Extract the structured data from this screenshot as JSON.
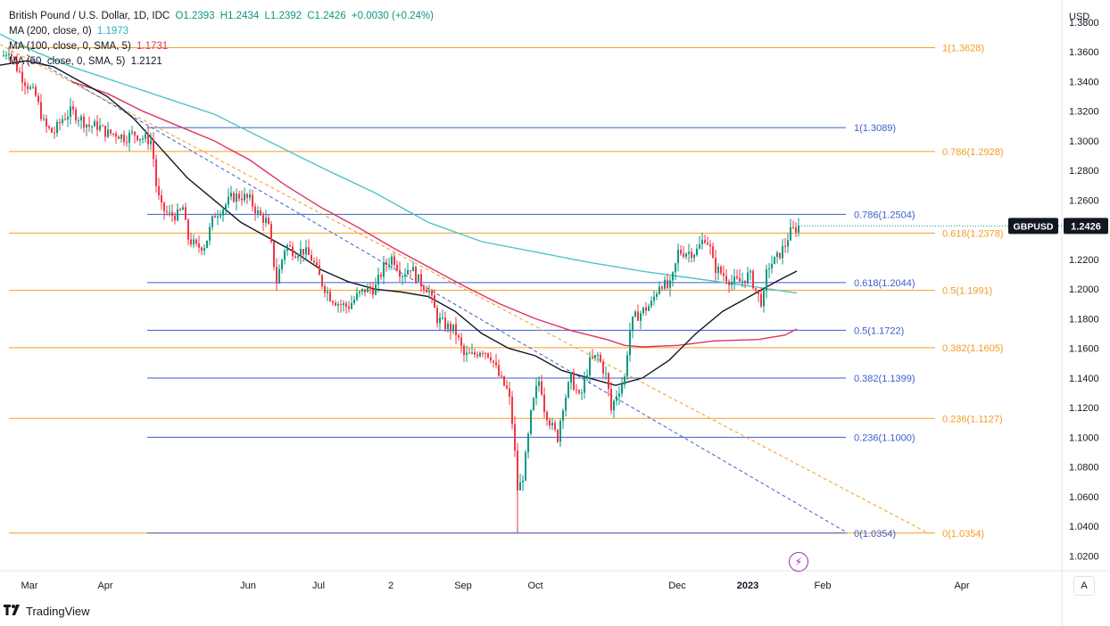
{
  "legend": {
    "symbol": "British Pound / U.S. Dollar, 1D, IDC",
    "open": "O1.2393",
    "high": "H1.2434",
    "low": "L1.2392",
    "close": "C1.2426",
    "change": "+0.0030 (+0.24%)",
    "ma200_label": "MA (200, close, 0)",
    "ma200_value": "1.1973",
    "ma100_label": "MA (100, close, 0, SMA, 5)",
    "ma100_value": "1.1731",
    "ma50_label": "MA (50, close, 0, SMA, 5)",
    "ma50_value": "1.2121"
  },
  "colors": {
    "up": "#089981",
    "down": "#f23645",
    "ma200": "#4fc3c8",
    "ma100": "#e0315f",
    "ma50": "#131722",
    "fib_orange": "#f59b23",
    "fib_blue": "#3b5fc9",
    "price_tag": "#131722"
  },
  "brand": "TradingView",
  "auto_label": "A",
  "chart_data": {
    "type": "candlestick",
    "title": "British Pound / U.S. Dollar, 1D, IDC",
    "currency": "USD",
    "ylim": [
      1.01,
      1.395
    ],
    "y_ticks": [
      "1.3800",
      "1.3600",
      "1.3400",
      "1.3200",
      "1.3000",
      "1.2800",
      "1.2600",
      "1.2400",
      "1.2200",
      "1.2000",
      "1.1800",
      "1.1600",
      "1.1400",
      "1.1200",
      "1.1000",
      "1.0800",
      "1.0600",
      "1.0400",
      "1.0200"
    ],
    "x_ticks": [
      "Mar",
      "Apr",
      "Jun",
      "Jul",
      "2",
      "Sep",
      "Oct",
      "Dec",
      "2023",
      "Feb",
      "Apr"
    ],
    "last_price": {
      "label": "GBPUSD",
      "value": "1.2426"
    },
    "fib_orange": [
      {
        "label": "1(1.3628)",
        "value": 1.3628
      },
      {
        "label": "0.786(1.2928)",
        "value": 1.2928
      },
      {
        "label": "0.618(1.2378)",
        "value": 1.2378
      },
      {
        "label": "0.5(1.1991)",
        "value": 1.1991
      },
      {
        "label": "0.382(1.1605)",
        "value": 1.1605
      },
      {
        "label": "0.236(1.1127)",
        "value": 1.1127
      },
      {
        "label": "0(1.0354)",
        "value": 1.0354
      }
    ],
    "fib_blue": [
      {
        "label": "1(1.3089)",
        "value": 1.3089
      },
      {
        "label": "0.786(1.2504)",
        "value": 1.2504
      },
      {
        "label": "0.618(1.2044)",
        "value": 1.2044
      },
      {
        "label": "0.5(1.1722)",
        "value": 1.1722
      },
      {
        "label": "0.382(1.1399)",
        "value": 1.1399
      },
      {
        "label": "0.236(1.1000)",
        "value": 1.1
      },
      {
        "label": "0(1.0354)",
        "value": 1.0354
      }
    ],
    "trend_orange": [
      [
        0,
        1.365
      ],
      [
        1040,
        1.0354
      ]
    ],
    "trend_blue": [
      [
        30,
        1.358
      ],
      [
        950,
        1.0354
      ]
    ],
    "close_path": [
      [
        0,
        1.355
      ],
      [
        10,
        1.362
      ],
      [
        18,
        1.35
      ],
      [
        28,
        1.34
      ],
      [
        40,
        1.33
      ],
      [
        50,
        1.31
      ],
      [
        60,
        1.305
      ],
      [
        70,
        1.315
      ],
      [
        80,
        1.32
      ],
      [
        90,
        1.315
      ],
      [
        100,
        1.31
      ],
      [
        110,
        1.31
      ],
      [
        120,
        1.305
      ],
      [
        130,
        1.305
      ],
      [
        140,
        1.302
      ],
      [
        150,
        1.305
      ],
      [
        160,
        1.302
      ],
      [
        170,
        1.3
      ],
      [
        175,
        1.27
      ],
      [
        180,
        1.255
      ],
      [
        190,
        1.25
      ],
      [
        200,
        1.25
      ],
      [
        205,
        1.255
      ],
      [
        210,
        1.235
      ],
      [
        220,
        1.228
      ],
      [
        230,
        1.23
      ],
      [
        240,
        1.25
      ],
      [
        250,
        1.255
      ],
      [
        260,
        1.262
      ],
      [
        270,
        1.263
      ],
      [
        280,
        1.26
      ],
      [
        290,
        1.25
      ],
      [
        300,
        1.245
      ],
      [
        305,
        1.225
      ],
      [
        310,
        1.205
      ],
      [
        320,
        1.23
      ],
      [
        330,
        1.225
      ],
      [
        340,
        1.226
      ],
      [
        350,
        1.22
      ],
      [
        360,
        1.205
      ],
      [
        370,
        1.195
      ],
      [
        380,
        1.19
      ],
      [
        390,
        1.188
      ],
      [
        400,
        1.195
      ],
      [
        410,
        1.2
      ],
      [
        420,
        1.2
      ],
      [
        430,
        1.215
      ],
      [
        440,
        1.222
      ],
      [
        450,
        1.21
      ],
      [
        460,
        1.215
      ],
      [
        470,
        1.205
      ],
      [
        480,
        1.2
      ],
      [
        490,
        1.18
      ],
      [
        500,
        1.175
      ],
      [
        510,
        1.172
      ],
      [
        520,
        1.155
      ],
      [
        530,
        1.155
      ],
      [
        540,
        1.16
      ],
      [
        550,
        1.155
      ],
      [
        560,
        1.14
      ],
      [
        570,
        1.13
      ],
      [
        575,
        1.105
      ],
      [
        580,
        1.065
      ],
      [
        585,
        1.07
      ],
      [
        590,
        1.09
      ],
      [
        595,
        1.115
      ],
      [
        600,
        1.13
      ],
      [
        605,
        1.14
      ],
      [
        610,
        1.12
      ],
      [
        620,
        1.105
      ],
      [
        625,
        1.1
      ],
      [
        630,
        1.12
      ],
      [
        640,
        1.14
      ],
      [
        650,
        1.125
      ],
      [
        660,
        1.15
      ],
      [
        670,
        1.155
      ],
      [
        680,
        1.14
      ],
      [
        685,
        1.118
      ],
      [
        690,
        1.128
      ],
      [
        700,
        1.14
      ],
      [
        705,
        1.17
      ],
      [
        710,
        1.18
      ],
      [
        720,
        1.185
      ],
      [
        730,
        1.19
      ],
      [
        740,
        1.205
      ],
      [
        750,
        1.2
      ],
      [
        755,
        1.21
      ],
      [
        760,
        1.225
      ],
      [
        770,
        1.225
      ],
      [
        780,
        1.225
      ],
      [
        790,
        1.235
      ],
      [
        795,
        1.23
      ],
      [
        800,
        1.215
      ],
      [
        810,
        1.21
      ],
      [
        820,
        1.205
      ],
      [
        830,
        1.205
      ],
      [
        840,
        1.21
      ],
      [
        850,
        1.195
      ],
      [
        855,
        1.19
      ],
      [
        860,
        1.215
      ],
      [
        870,
        1.22
      ],
      [
        875,
        1.225
      ],
      [
        880,
        1.23
      ],
      [
        885,
        1.238
      ],
      [
        890,
        1.24
      ],
      [
        895,
        1.2426
      ]
    ],
    "ma200": [
      [
        0,
        1.372
      ],
      [
        40,
        1.36
      ],
      [
        80,
        1.35
      ],
      [
        120,
        1.342
      ],
      [
        180,
        1.33
      ],
      [
        240,
        1.318
      ],
      [
        300,
        1.3
      ],
      [
        360,
        1.282
      ],
      [
        420,
        1.265
      ],
      [
        480,
        1.245
      ],
      [
        540,
        1.232
      ],
      [
        600,
        1.225
      ],
      [
        660,
        1.218
      ],
      [
        720,
        1.212
      ],
      [
        780,
        1.207
      ],
      [
        840,
        1.202
      ],
      [
        893,
        1.1973
      ]
    ],
    "ma100": [
      [
        80,
        1.34
      ],
      [
        120,
        1.332
      ],
      [
        160,
        1.32
      ],
      [
        200,
        1.31
      ],
      [
        240,
        1.3
      ],
      [
        280,
        1.287
      ],
      [
        320,
        1.27
      ],
      [
        360,
        1.255
      ],
      [
        400,
        1.242
      ],
      [
        440,
        1.228
      ],
      [
        480,
        1.215
      ],
      [
        520,
        1.202
      ],
      [
        560,
        1.19
      ],
      [
        600,
        1.18
      ],
      [
        640,
        1.172
      ],
      [
        680,
        1.166
      ],
      [
        700,
        1.162
      ],
      [
        720,
        1.161
      ],
      [
        760,
        1.162
      ],
      [
        800,
        1.165
      ],
      [
        850,
        1.166
      ],
      [
        880,
        1.169
      ],
      [
        893,
        1.1731
      ]
    ],
    "ma50": [
      [
        0,
        1.351
      ],
      [
        30,
        1.354
      ],
      [
        60,
        1.35
      ],
      [
        90,
        1.34
      ],
      [
        120,
        1.33
      ],
      [
        150,
        1.315
      ],
      [
        180,
        1.295
      ],
      [
        210,
        1.275
      ],
      [
        240,
        1.26
      ],
      [
        270,
        1.245
      ],
      [
        300,
        1.235
      ],
      [
        330,
        1.225
      ],
      [
        360,
        1.213
      ],
      [
        390,
        1.205
      ],
      [
        420,
        1.2
      ],
      [
        450,
        1.198
      ],
      [
        480,
        1.195
      ],
      [
        510,
        1.185
      ],
      [
        540,
        1.17
      ],
      [
        570,
        1.16
      ],
      [
        600,
        1.155
      ],
      [
        630,
        1.145
      ],
      [
        660,
        1.14
      ],
      [
        690,
        1.135
      ],
      [
        720,
        1.14
      ],
      [
        750,
        1.152
      ],
      [
        780,
        1.17
      ],
      [
        810,
        1.185
      ],
      [
        840,
        1.195
      ],
      [
        870,
        1.205
      ],
      [
        893,
        1.2121
      ]
    ]
  }
}
